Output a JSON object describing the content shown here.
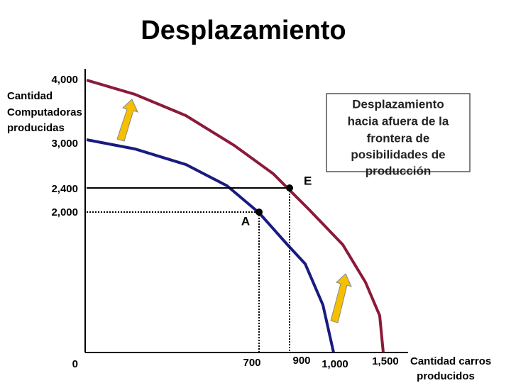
{
  "title": "Desplazamiento",
  "y_axis": {
    "label_lines": [
      "Cantidad",
      "Computadoras",
      "producidas"
    ],
    "ticks": [
      "4,000",
      "3,000",
      "2,400",
      "2,000",
      "0"
    ]
  },
  "x_axis": {
    "label_lines": [
      "Cantidad carros",
      "producidos"
    ],
    "ticks": [
      "700",
      "900",
      "1,000",
      "1,500"
    ]
  },
  "points": {
    "e": "E",
    "a": "A"
  },
  "note": {
    "lines": [
      "Desplazamiento",
      "hacia afuera de la",
      "frontera de",
      "posibilidades de",
      "producción"
    ]
  }
}
